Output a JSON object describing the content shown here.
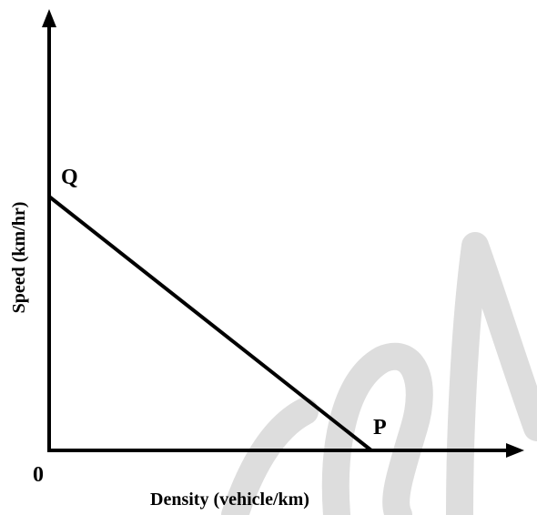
{
  "diagram": {
    "x_axis_label": "Density (vehicle/km)",
    "y_axis_label": "Speed (km/hr)",
    "origin_label": "0",
    "point_q_label": "Q",
    "point_p_label": "P",
    "line_color": "#000000",
    "watermark_color": "#dddddd"
  }
}
